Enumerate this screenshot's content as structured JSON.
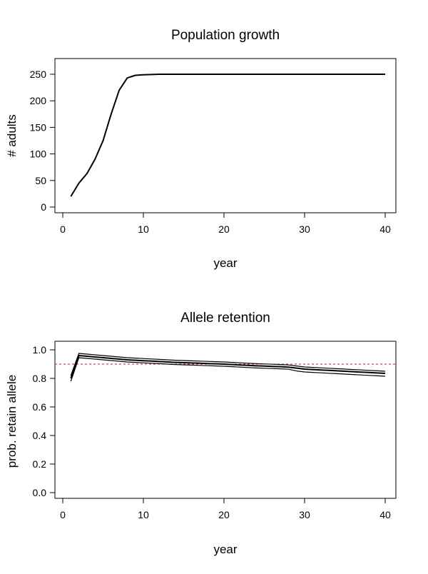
{
  "chart_data": [
    {
      "type": "line",
      "title": "Population growth",
      "xlabel": "year",
      "ylabel": "# adults",
      "xlim": [
        0,
        40
      ],
      "ylim": [
        0,
        250
      ],
      "xticks": [
        0,
        10,
        20,
        30,
        40
      ],
      "yticks": [
        0,
        50,
        100,
        150,
        200,
        250
      ],
      "grid": false,
      "x": [
        1,
        2,
        3,
        4,
        5,
        6,
        7,
        8,
        9,
        10,
        11,
        12,
        13,
        14,
        15,
        16,
        17,
        18,
        19,
        20,
        21,
        22,
        23,
        24,
        25,
        26,
        27,
        28,
        29,
        30,
        31,
        32,
        33,
        34,
        35,
        36,
        37,
        38,
        39,
        40
      ],
      "series": [
        {
          "color": "#000000",
          "values": [
            20,
            45,
            63,
            90,
            125,
            175,
            220,
            243,
            248,
            249,
            249.5,
            250,
            250,
            250,
            250,
            250,
            250,
            250,
            250,
            250,
            250,
            250,
            250,
            250,
            250,
            250,
            250,
            250,
            250,
            250,
            250,
            250,
            250,
            250,
            250,
            250,
            250,
            250,
            250,
            250
          ]
        }
      ]
    },
    {
      "type": "line",
      "title": "Allele retention",
      "xlabel": "year",
      "ylabel": "prob. retain allele",
      "xlim": [
        0,
        40
      ],
      "ylim": [
        0,
        1
      ],
      "xticks": [
        0,
        10,
        20,
        30,
        40
      ],
      "yticks": [
        "0.0",
        "0.2",
        "0.4",
        "0.6",
        "0.8",
        "1.0"
      ],
      "grid": false,
      "reference_line": {
        "y": 0.9,
        "color": "#ff0000",
        "style": "dashed"
      },
      "x": [
        1,
        2,
        3,
        4,
        5,
        6,
        7,
        8,
        9,
        10,
        11,
        12,
        13,
        14,
        15,
        16,
        17,
        18,
        19,
        20,
        21,
        22,
        23,
        24,
        25,
        26,
        27,
        28,
        29,
        30,
        31,
        32,
        33,
        34,
        35,
        36,
        37,
        38,
        39,
        40
      ],
      "series": [
        {
          "color": "#000000",
          "values": [
            0.8,
            0.96,
            0.955,
            0.95,
            0.945,
            0.94,
            0.935,
            0.93,
            0.927,
            0.924,
            0.921,
            0.918,
            0.915,
            0.912,
            0.91,
            0.908,
            0.906,
            0.904,
            0.902,
            0.9,
            0.897,
            0.894,
            0.891,
            0.888,
            0.886,
            0.884,
            0.882,
            0.879,
            0.872,
            0.865,
            0.862,
            0.859,
            0.856,
            0.853,
            0.85,
            0.847,
            0.844,
            0.841,
            0.838,
            0.835
          ]
        },
        {
          "color": "#000000",
          "values": [
            0.82,
            0.975,
            0.97,
            0.965,
            0.96,
            0.955,
            0.95,
            0.945,
            0.942,
            0.939,
            0.936,
            0.933,
            0.93,
            0.927,
            0.925,
            0.923,
            0.921,
            0.919,
            0.917,
            0.915,
            0.912,
            0.909,
            0.906,
            0.903,
            0.901,
            0.899,
            0.897,
            0.894,
            0.887,
            0.88,
            0.877,
            0.874,
            0.871,
            0.868,
            0.865,
            0.862,
            0.859,
            0.856,
            0.853,
            0.85
          ]
        },
        {
          "color": "#000000",
          "values": [
            0.78,
            0.945,
            0.94,
            0.935,
            0.93,
            0.925,
            0.92,
            0.915,
            0.912,
            0.909,
            0.906,
            0.903,
            0.9,
            0.897,
            0.895,
            0.893,
            0.891,
            0.889,
            0.887,
            0.885,
            0.882,
            0.879,
            0.876,
            0.873,
            0.871,
            0.869,
            0.867,
            0.864,
            0.852,
            0.845,
            0.842,
            0.839,
            0.836,
            0.833,
            0.83,
            0.827,
            0.824,
            0.821,
            0.818,
            0.815
          ]
        }
      ]
    }
  ]
}
